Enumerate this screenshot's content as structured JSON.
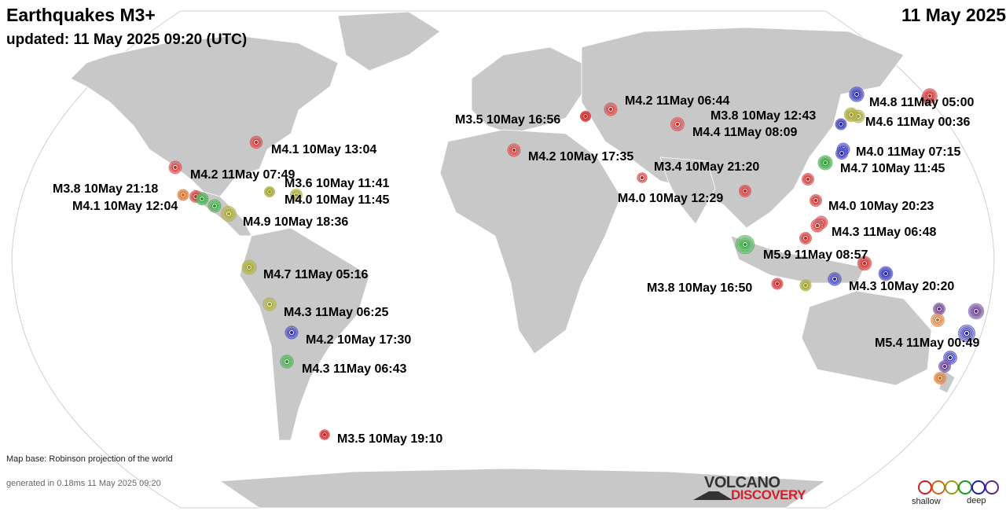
{
  "header": {
    "title": "Earthquakes M3+",
    "updated": "updated: 11 May 2025 09:20 (UTC)",
    "date": "11 May 2025"
  },
  "footer": {
    "map_base": "Map base: Robinson projection of the world",
    "generated": "generated in 0.18ms 11 May 2025 09:20",
    "logo_top": "VOLCANO",
    "logo_bottom": "DISCOVERY"
  },
  "legend": {
    "shallow": "shallow",
    "deep": "deep"
  },
  "colors": {
    "red": "#cc2020",
    "orange": "#d4661a",
    "olive": "#9a9a1a",
    "green": "#1e9a28",
    "blue": "#2020b0",
    "purple": "#5a2a8a",
    "land": "#c8c8c8",
    "ocean": "#ffffff"
  },
  "earthquakes": [
    {
      "id": "eq-bering",
      "label": "M4.8 11May 05:00",
      "mag": 4.8,
      "depth": "red"
    },
    {
      "id": "eq-japan-1",
      "label": "M3.8 10May 12:43",
      "mag": 3.8,
      "depth": "blue"
    },
    {
      "id": "eq-japan-2",
      "label": "M4.6 11May 00:36",
      "mag": 4.6,
      "depth": "olive"
    },
    {
      "id": "eq-japan-3",
      "label": "M4.0 11May 07:15",
      "mag": 4.0,
      "depth": "blue"
    },
    {
      "id": "eq-taiwan",
      "label": "M4.7 10May 11:45",
      "mag": 4.7,
      "depth": "green"
    },
    {
      "id": "eq-caucasus",
      "label": "M4.2 11May 06:44",
      "mag": 4.2,
      "depth": "red"
    },
    {
      "id": "eq-turkey",
      "label": "M3.5 10May 16:56",
      "mag": 3.5,
      "depth": "red"
    },
    {
      "id": "eq-hindukush",
      "label": "M4.4 11May 08:09",
      "mag": 4.4,
      "depth": "red"
    },
    {
      "id": "eq-greece",
      "label": "M4.2 10May 17:35",
      "mag": 4.2,
      "depth": "red"
    },
    {
      "id": "eq-iran",
      "label": "M3.4 10May 21:20",
      "mag": 3.4,
      "depth": "red"
    },
    {
      "id": "eq-myanmar",
      "label": "M4.0 10May 12:29",
      "mag": 4.0,
      "depth": "red"
    },
    {
      "id": "eq-philippines-1",
      "label": "M4.0 10May 20:23",
      "mag": 4.0,
      "depth": "red"
    },
    {
      "id": "eq-philippines-2",
      "label": "M4.3 11May 06:48",
      "mag": 4.3,
      "depth": "red"
    },
    {
      "id": "eq-sumatra",
      "label": "M5.9 11May 08:57",
      "mag": 5.9,
      "depth": "green"
    },
    {
      "id": "eq-java",
      "label": "M3.8 10May 16:50",
      "mag": 3.8,
      "depth": "red"
    },
    {
      "id": "eq-banda",
      "label": "M4.3 10May 20:20",
      "mag": 4.3,
      "depth": "blue"
    },
    {
      "id": "eq-vanuatu",
      "label": "M5.4 11May 00:49",
      "mag": 5.4,
      "depth": "blue"
    },
    {
      "id": "eq-usa-east",
      "label": "M4.1 10May 13:04",
      "mag": 4.1,
      "depth": "red"
    },
    {
      "id": "eq-mexico-1",
      "label": "M4.2 11May 07:49",
      "mag": 4.2,
      "depth": "red"
    },
    {
      "id": "eq-cuba",
      "label": "M3.6 10May 11:41",
      "mag": 3.6,
      "depth": "olive"
    },
    {
      "id": "eq-mexico-2",
      "label": "M3.8 10May 21:18",
      "mag": 3.8,
      "depth": "orange"
    },
    {
      "id": "eq-caribbean",
      "label": "M4.0 10May 11:45",
      "mag": 4.0,
      "depth": "olive"
    },
    {
      "id": "eq-guatemala",
      "label": "M4.1 10May 12:04",
      "mag": 4.1,
      "depth": "green"
    },
    {
      "id": "eq-costarica",
      "label": "M4.9 10May 18:36",
      "mag": 4.9,
      "depth": "olive"
    },
    {
      "id": "eq-ecuador",
      "label": "M4.7 11May 05:16",
      "mag": 4.7,
      "depth": "olive"
    },
    {
      "id": "eq-peru",
      "label": "M4.3 11May 06:25",
      "mag": 4.3,
      "depth": "olive"
    },
    {
      "id": "eq-chile-1",
      "label": "M4.2 10May 17:30",
      "mag": 4.2,
      "depth": "blue"
    },
    {
      "id": "eq-chile-2",
      "label": "M4.3 11May 06:43",
      "mag": 4.3,
      "depth": "green"
    },
    {
      "id": "eq-drake",
      "label": "M3.5 10May 19:10",
      "mag": 3.5,
      "depth": "red"
    }
  ]
}
